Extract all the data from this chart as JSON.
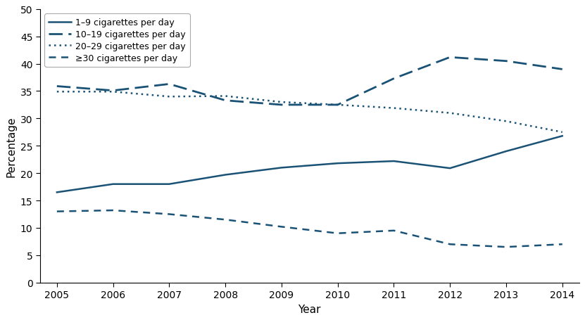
{
  "years": [
    2005,
    2006,
    2007,
    2008,
    2009,
    2010,
    2011,
    2012,
    2013,
    2014
  ],
  "series": {
    "1-9": [
      16.5,
      18.0,
      18.0,
      19.7,
      21.0,
      21.8,
      22.2,
      20.9,
      24.0,
      26.8
    ],
    "10-19": [
      35.9,
      35.1,
      36.3,
      33.3,
      32.5,
      32.5,
      37.3,
      41.2,
      40.5,
      39.0
    ],
    "20-29": [
      34.9,
      34.9,
      34.0,
      34.1,
      33.0,
      32.5,
      31.9,
      31.0,
      29.5,
      27.5
    ],
    "30plus": [
      13.0,
      13.2,
      12.5,
      11.5,
      10.2,
      9.0,
      9.5,
      7.0,
      6.5,
      7.0
    ]
  },
  "legend_labels": [
    "1–9 cigarettes per day",
    "10–19 cigarettes per day",
    "20–29 cigarettes per day",
    "≥30 cigarettes per day"
  ],
  "color": "#1a5276",
  "ylabel": "Percentage",
  "xlabel": "Year",
  "ylim": [
    0,
    50
  ],
  "yticks": [
    0,
    5,
    10,
    15,
    20,
    25,
    30,
    35,
    40,
    45,
    50
  ],
  "background_color": "#ffffff"
}
